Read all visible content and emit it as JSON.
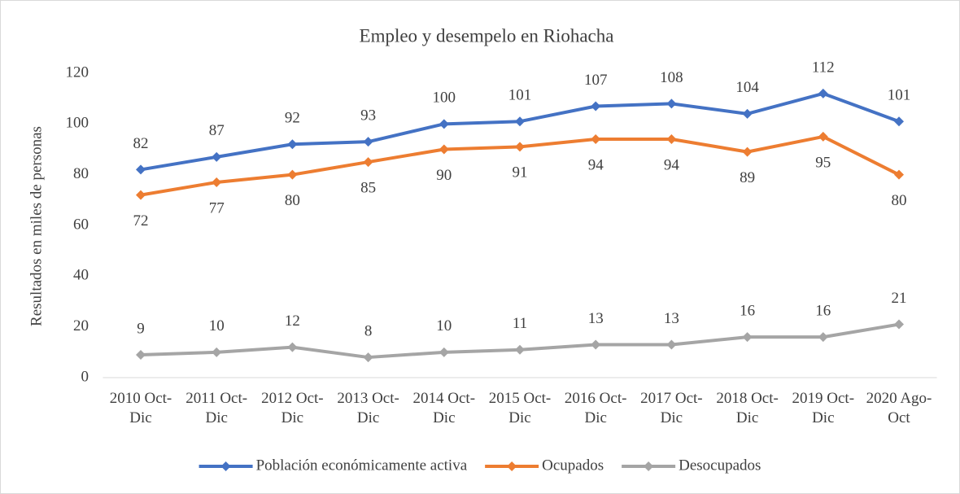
{
  "chart_data": {
    "type": "line",
    "title": "Empleo y desempelo en Riohacha",
    "y_label": "Resultados en miles de personas",
    "categories": [
      "2010 Oct-Dic",
      "2011 Oct-Dic",
      "2012 Oct-Dic",
      "2013 Oct-Dic",
      "2014 Oct-Dic",
      "2015 Oct-Dic",
      "2016 Oct-Dic",
      "2017 Oct-Dic",
      "2018 Oct-Dic",
      "2019 Oct-Dic",
      "2020 Ago-Oct"
    ],
    "series": [
      {
        "name": "Población económicamente activa",
        "color": "#4472c4",
        "values": [
          82,
          87,
          92,
          93,
          100,
          101,
          107,
          108,
          104,
          112,
          101
        ],
        "label_position": "above"
      },
      {
        "name": "Ocupados",
        "color": "#ed7d31",
        "values": [
          72,
          77,
          80,
          85,
          90,
          91,
          94,
          94,
          89,
          95,
          80
        ],
        "label_position": "below"
      },
      {
        "name": "Desocupados",
        "color": "#a5a5a5",
        "values": [
          9,
          10,
          12,
          8,
          10,
          11,
          13,
          13,
          16,
          16,
          21
        ],
        "label_position": "above"
      }
    ],
    "ylim": [
      0,
      120
    ],
    "yticks": [
      0,
      20,
      40,
      60,
      80,
      100,
      120
    ],
    "grid": false,
    "legend": "bottom"
  }
}
